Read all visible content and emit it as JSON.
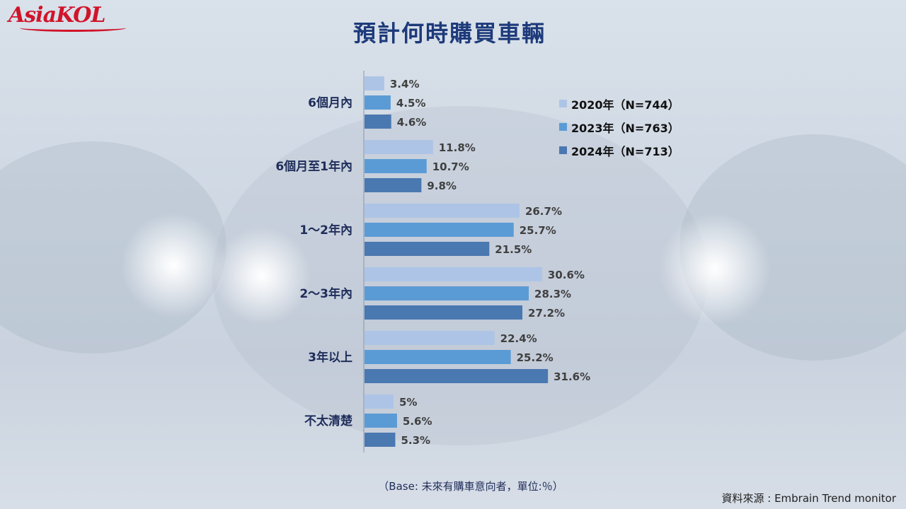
{
  "logo_text": "AsiaKOL",
  "title": "預計何時購買車輛",
  "base_note": "（Base: 未來有購車意向者，單位:％）",
  "source": "資料來源 : Embrain  Trend monitor",
  "colors": {
    "s2020": "#adc4e6",
    "s2023": "#5b9bd5",
    "s2024": "#4a78b0",
    "title": "#1d3a7a",
    "logo": "#d0142a"
  },
  "chart_data": {
    "type": "bar",
    "orientation": "horizontal",
    "title": "預計何時購買車輛",
    "categories": [
      "6個月內",
      "6個月至1年內",
      "1～2年內",
      "2～3年內",
      "3年以上",
      "不太清楚"
    ],
    "series": [
      {
        "name": "2020年（N=744）",
        "values": [
          3.4,
          11.8,
          26.7,
          30.6,
          22.4,
          5
        ],
        "labels": [
          "3.4%",
          "11.8%",
          "26.7%",
          "30.6%",
          "22.4%",
          "5%"
        ]
      },
      {
        "name": "2023年（N=763）",
        "values": [
          4.5,
          10.7,
          25.7,
          28.3,
          25.2,
          5.6
        ],
        "labels": [
          "4.5%",
          "10.7%",
          "25.7%",
          "28.3%",
          "25.2%",
          "5.6%"
        ]
      },
      {
        "name": "2024年（N=713）",
        "values": [
          4.6,
          9.8,
          21.5,
          27.2,
          31.6,
          5.3
        ],
        "labels": [
          "4.6%",
          "9.8%",
          "21.5%",
          "27.2%",
          "31.6%",
          "5.3%"
        ]
      }
    ],
    "legend": "top-right",
    "grid": false
  }
}
